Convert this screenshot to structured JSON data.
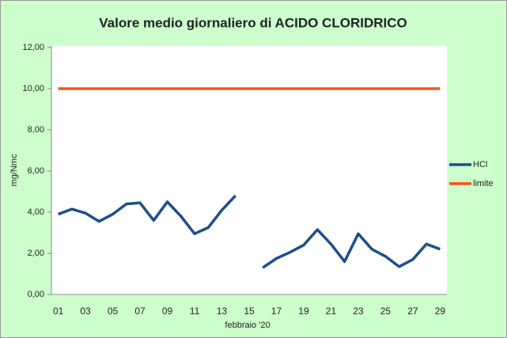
{
  "chart_data": {
    "type": "line",
    "title": "Valore medio giornaliero di ACIDO CLORIDRICO",
    "y_label": "mg/Nmc",
    "x_label": "febbraio '20",
    "categories": [
      "01",
      null,
      "03",
      null,
      "05",
      null,
      "07",
      null,
      "09",
      null,
      "11",
      null,
      "13",
      null,
      "15",
      null,
      "17",
      null,
      "19",
      null,
      "21",
      null,
      "23",
      null,
      "25",
      null,
      "27",
      null,
      "29"
    ],
    "series": [
      {
        "name": "HCl",
        "color": "#1f4e8c",
        "values": [
          3.9,
          4.15,
          3.95,
          3.55,
          3.9,
          4.4,
          4.45,
          3.6,
          4.5,
          3.8,
          2.95,
          3.25,
          4.1,
          4.8,
          null,
          1.3,
          1.75,
          2.05,
          2.4,
          3.15,
          2.45,
          1.6,
          2.95,
          2.2,
          1.85,
          1.35,
          1.7,
          2.45,
          2.2
        ]
      },
      {
        "name": "limite",
        "color": "#ff4f1a",
        "values": [
          10,
          10,
          10,
          10,
          10,
          10,
          10,
          10,
          10,
          10,
          10,
          10,
          10,
          10,
          10,
          10,
          10,
          10,
          10,
          10,
          10,
          10,
          10,
          10,
          10,
          10,
          10,
          10,
          10
        ]
      }
    ],
    "ylim": [
      0,
      12
    ],
    "yticks": [
      {
        "value": 0,
        "label": "0,00"
      },
      {
        "value": 2,
        "label": "2,00"
      },
      {
        "value": 4,
        "label": "4,00"
      },
      {
        "value": 6,
        "label": "6,00"
      },
      {
        "value": 8,
        "label": "8,00"
      },
      {
        "value": 10,
        "label": "10,00"
      },
      {
        "value": 12,
        "label": "12,00"
      }
    ],
    "grid": false,
    "legend": "right"
  }
}
